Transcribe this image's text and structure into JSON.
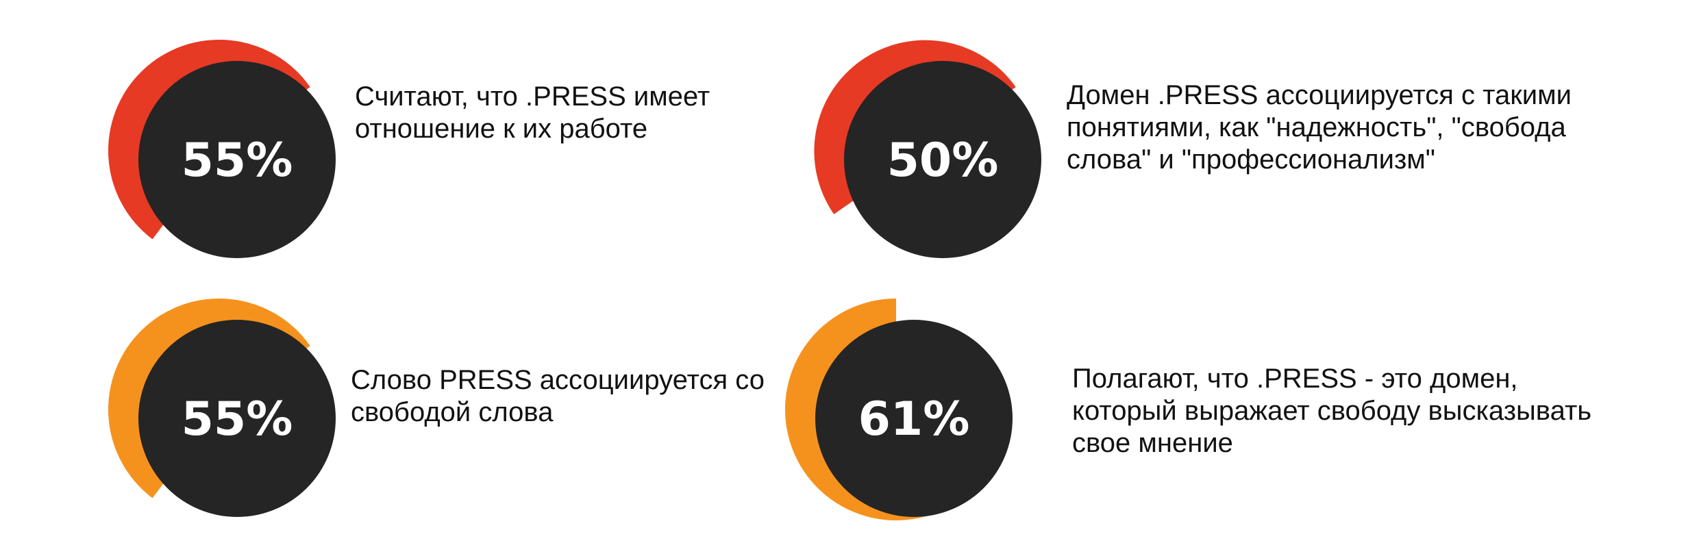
{
  "colors": {
    "ring_red": "#E63A24",
    "ring_orange": "#F5921E",
    "disc": "#252525",
    "label": "#ffffff",
    "text": "#111111"
  },
  "chart_data": {
    "type": "pie",
    "items": [
      {
        "value": 55,
        "label": "55%",
        "color": "#E63A24",
        "text": "Считают, что .PRESS имеет отношение к их работе"
      },
      {
        "value": 50,
        "label": "50%",
        "color": "#E63A24",
        "text": "Домен .PRESS ассоциируется с такими понятиями, как \"надежность\", \"свобода слова\" и \"профессионализм\""
      },
      {
        "value": 55,
        "label": "55%",
        "color": "#F5921E",
        "text": "Слово PRESS ассоциируется со свободой слова"
      },
      {
        "value": 61,
        "label": "61%",
        "color": "#F5921E",
        "text": "Полагают, что .PRESS - это домен, который выражает свободу высказывать свое мнение"
      }
    ]
  }
}
